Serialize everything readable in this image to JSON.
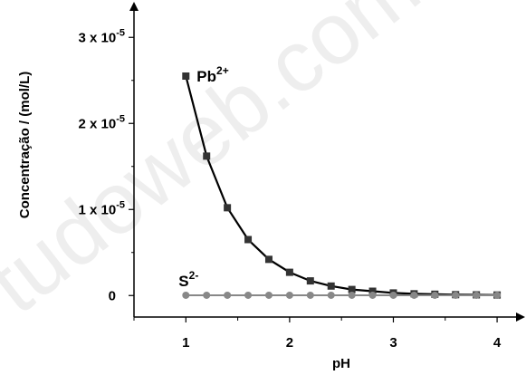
{
  "watermark": "tudoweb.com.br",
  "chart_data": {
    "type": "line",
    "xlabel": "pH",
    "ylabel": "Concentração / (mol/L)",
    "xlim": [
      0.5,
      4.2
    ],
    "ylim": [
      -0.25,
      3.35
    ],
    "x_ticks": [
      1,
      2,
      3,
      4
    ],
    "x_tick_labels": [
      "1",
      "2",
      "3",
      "4"
    ],
    "y_ticks": [
      0,
      1,
      2,
      3
    ],
    "y_tick_labels": [
      "0",
      "1 x 10",
      "2 x 10",
      "3 x 10"
    ],
    "y_tick_exponent": "-5",
    "y_unit": "1e-5 mol/L",
    "grid": false,
    "series": [
      {
        "name": "Pb",
        "superscript": "2+",
        "color": "#000000",
        "marker": "square",
        "x": [
          1.0,
          1.2,
          1.4,
          1.6,
          1.8,
          2.0,
          2.2,
          2.4,
          2.6,
          2.8,
          3.0,
          3.2,
          3.4,
          3.6,
          3.8,
          4.0
        ],
        "y": [
          2.55,
          1.62,
          1.02,
          0.65,
          0.42,
          0.27,
          0.17,
          0.11,
          0.07,
          0.05,
          0.03,
          0.02,
          0.015,
          0.01,
          0.008,
          0.006
        ]
      },
      {
        "name": "S",
        "superscript": "2-",
        "color": "#888888",
        "marker": "circle",
        "x": [
          1.0,
          1.2,
          1.4,
          1.6,
          1.8,
          2.0,
          2.2,
          2.4,
          2.6,
          2.8,
          3.0,
          3.2,
          3.4,
          3.6,
          3.8,
          4.0
        ],
        "y": [
          0.003,
          0.003,
          0.003,
          0.003,
          0.003,
          0.003,
          0.003,
          0.003,
          0.003,
          0.003,
          0.003,
          0.003,
          0.003,
          0.003,
          0.003,
          0.003
        ]
      }
    ]
  }
}
